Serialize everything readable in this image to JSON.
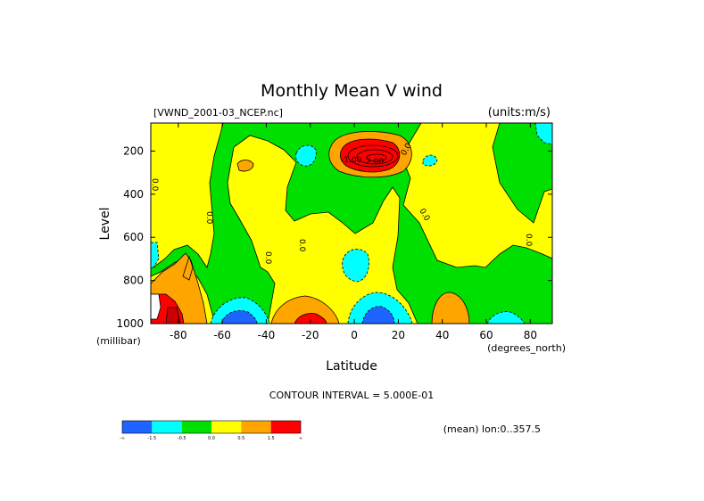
{
  "chart_data": {
    "type": "heatmap",
    "title": "Monthly Mean V wind",
    "dataset": "[VWND_2001-03_NCEP.nc]",
    "units": "(units:m/s)",
    "ylabel": "Level",
    "yunit": "(millibar)",
    "xlabel": "Latitude",
    "xunit": "(degrees_north)",
    "xlim": [
      -92.5,
      90
    ],
    "ylim": [
      1000,
      70
    ],
    "y_reversed": true,
    "x_ticks": [
      -80,
      -60,
      -40,
      -20,
      0,
      20,
      40,
      60,
      80
    ],
    "y_ticks": [
      200,
      400,
      600,
      800,
      1000
    ],
    "x_tick_labels": [
      "-80",
      "-60",
      "-40",
      "-20",
      "0",
      "20",
      "40",
      "60",
      "80"
    ],
    "y_tick_labels": [
      "200",
      "400",
      "600",
      "800",
      "1000"
    ],
    "contour_interval_text": "CONTOUR INTERVAL = 5.000E-01",
    "mean_note": "(mean) lon:0..357.5",
    "legend": {
      "bins": [
        {
          "color": "#1e64ff",
          "range": "< -1.5"
        },
        {
          "color": "#00ffff",
          "range": "-1.5 to -0.5"
        },
        {
          "color": "#00e000",
          "range": "-0.5 to 0.0"
        },
        {
          "color": "#ffff00",
          "range": "0.0 to 0.5"
        },
        {
          "color": "#ffa500",
          "range": "0.5 to 1.5"
        },
        {
          "color": "#ff0000",
          "range": "> 1.5"
        }
      ],
      "labels": [
        "-∞",
        "-1.5",
        "-0.5",
        "0.0",
        "0.5",
        "1.5",
        "∞"
      ]
    },
    "contour_labels": [
      "0.0",
      "-1.00",
      "2.00"
    ],
    "features": [
      {
        "name": "upper-tropical-max",
        "lat": 10,
        "level": 180,
        "value": 3.0
      },
      {
        "name": "south-polar-surface-max",
        "lat": -80,
        "level": 990,
        "value": 2.0
      },
      {
        "name": "southern-subtropical-surface-max",
        "lat": -20,
        "level": 990,
        "value": 1.5
      },
      {
        "name": "equatorial-surface-min",
        "lat": 10,
        "level": 990,
        "value": -2.0
      },
      {
        "name": "southern-midlat-surface-min",
        "lat": -55,
        "level": 990,
        "value": -2.0
      },
      {
        "name": "mid-level-negative",
        "lat": 3,
        "level": 720,
        "value": -0.8
      },
      {
        "name": "arctic-negative",
        "lat": 80,
        "level": 190,
        "value": -0.8
      }
    ]
  },
  "colors": {
    "blue": "#1e64ff",
    "cyan": "#00ffff",
    "green": "#00e000",
    "yellow": "#ffff00",
    "orange": "#ffa500",
    "red": "#ff0000"
  }
}
